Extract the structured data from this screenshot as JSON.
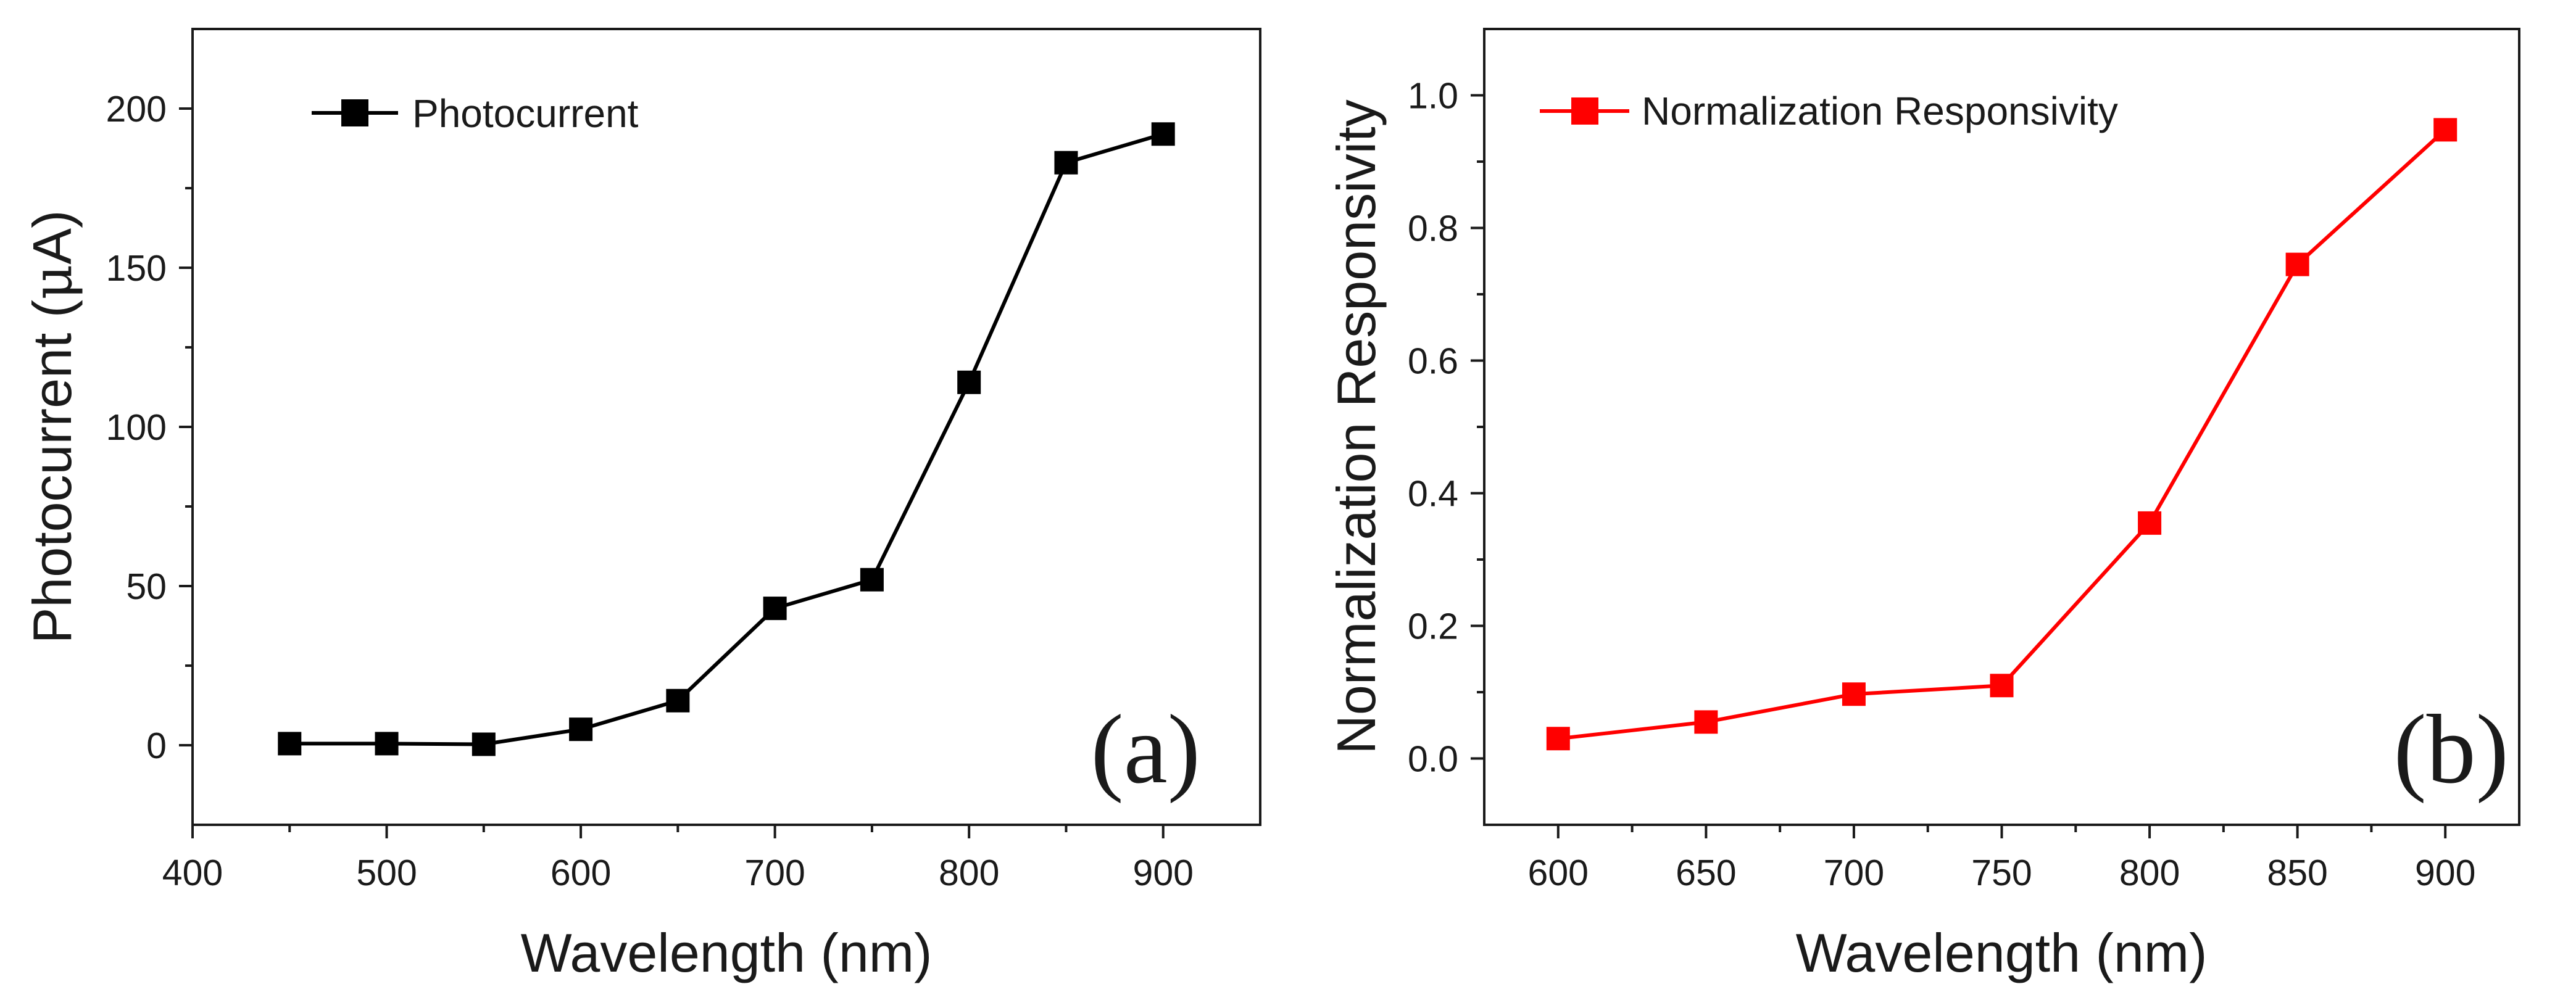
{
  "chart_data": [
    {
      "type": "line",
      "panel_tag": "(a)",
      "x": [
        450,
        500,
        550,
        600,
        650,
        700,
        750,
        800,
        850,
        900
      ],
      "series": [
        {
          "name": "Photocurrent",
          "values": [
            0.5,
            0.5,
            0.3,
            5,
            14,
            43,
            52,
            114,
            183,
            192
          ],
          "color": "#000000",
          "marker": "square"
        }
      ],
      "xlabel": "Wavelength (nm)",
      "ylabel_text": "Photocurrent (",
      "ylabel_unit_greek": "μ",
      "ylabel_unit_tail": "A)",
      "xlim": [
        400,
        950
      ],
      "ylim": [
        -25,
        225
      ],
      "xticks": [
        400,
        500,
        600,
        700,
        800,
        900
      ],
      "yticks": [
        0,
        50,
        100,
        150,
        200
      ],
      "legend_position": "top-left",
      "grid": false
    },
    {
      "type": "line",
      "panel_tag": "(b)",
      "x": [
        600,
        650,
        700,
        750,
        800,
        850,
        900
      ],
      "series": [
        {
          "name": "Normalization Responsivity",
          "values": [
            0.03,
            0.055,
            0.097,
            0.11,
            0.355,
            0.745,
            0.948
          ],
          "color": "#ff0000",
          "marker": "square"
        }
      ],
      "xlabel": "Wavelength (nm)",
      "ylabel": "Normalization Responsivity",
      "xlim": [
        575,
        925
      ],
      "ylim": [
        -0.1,
        1.1
      ],
      "xticks": [
        600,
        650,
        700,
        750,
        800,
        850,
        900
      ],
      "yticks": [
        0.0,
        0.2,
        0.4,
        0.6,
        0.8,
        1.0
      ],
      "ytick_decimals": 1,
      "legend_position": "top-left",
      "grid": false
    }
  ]
}
